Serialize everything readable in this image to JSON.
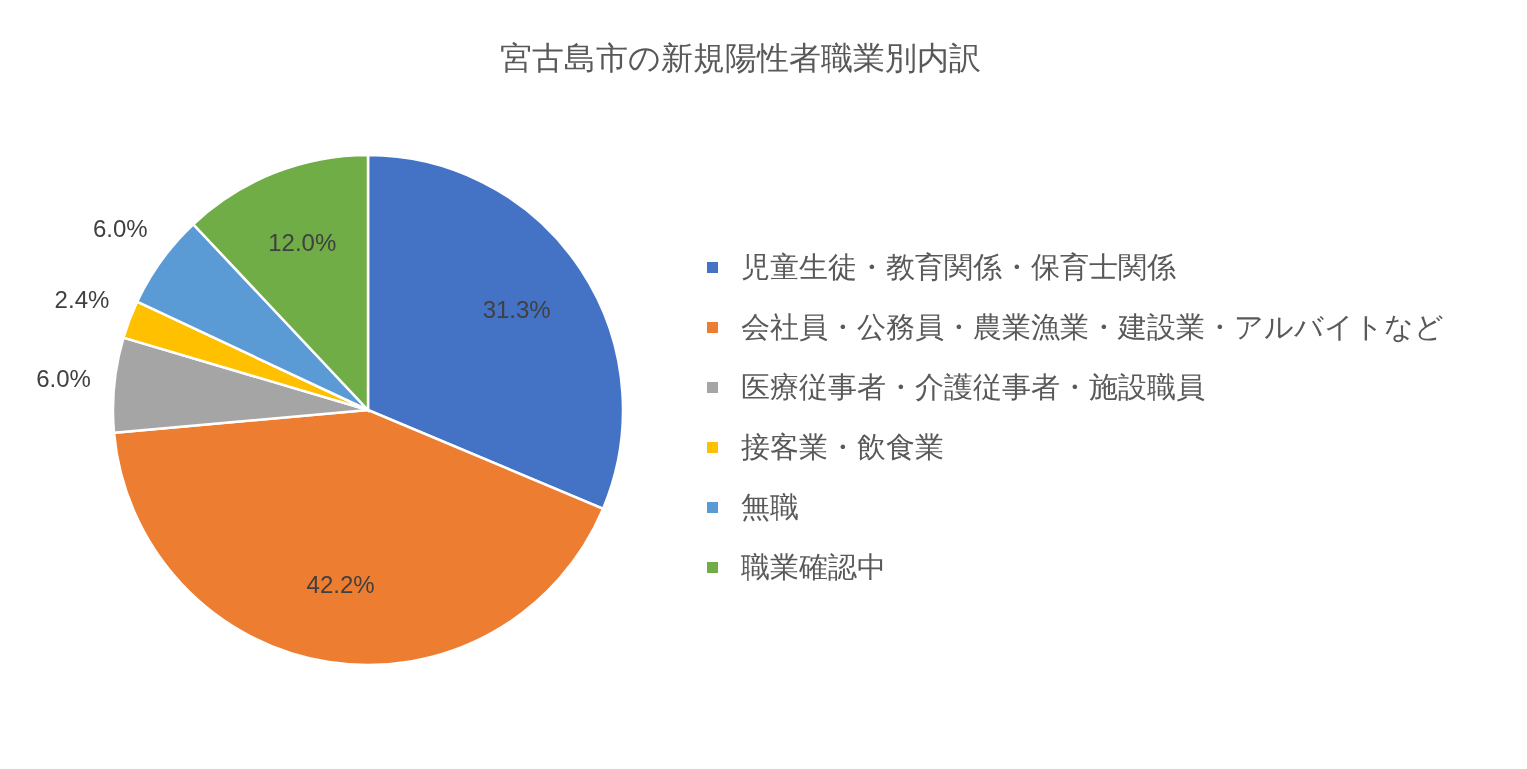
{
  "chart_data": {
    "type": "pie",
    "title": "宮古島市の新規陽性者職業別内訳",
    "categories": [
      "児童生徒・教育関係・保育士関係",
      "会社員・公務員・農業漁業・建設業・アルバイトなど",
      "医療従事者・介護従事者・施設職員",
      "接客業・飲食業",
      "無職",
      "職業確認中"
    ],
    "values": [
      31.3,
      42.2,
      6.0,
      2.4,
      6.0,
      12.0
    ],
    "value_labels": [
      "31.3%",
      "42.2%",
      "6.0%",
      "2.4%",
      "6.0%",
      "12.0%"
    ],
    "colors": [
      "#4472c4",
      "#ed7d31",
      "#a5a5a5",
      "#ffc000",
      "#5b9bd5",
      "#70ad47"
    ],
    "legend": "right"
  }
}
